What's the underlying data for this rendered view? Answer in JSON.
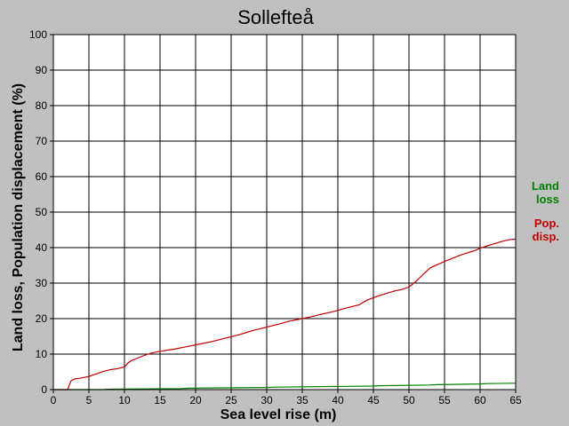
{
  "chart_data": {
    "type": "line",
    "title": "Sollefteå",
    "xlabel": "Sea level rise (m)",
    "ylabel": "Land loss, Population displacement (%)",
    "xlim": [
      0,
      65
    ],
    "ylim": [
      0,
      100
    ],
    "xticks": [
      0,
      5,
      10,
      15,
      20,
      25,
      30,
      35,
      40,
      45,
      50,
      55,
      60,
      65
    ],
    "yticks": [
      0,
      10,
      20,
      30,
      40,
      50,
      60,
      70,
      80,
      90,
      100
    ],
    "grid": true,
    "legend_position": "right",
    "series": [
      {
        "name": "Land loss",
        "legend_lines": [
          "Land",
          "loss"
        ],
        "color": "#008000",
        "x": [
          0,
          7,
          7.5,
          18,
          19,
          30,
          31,
          45,
          46,
          53,
          54,
          60,
          61,
          65
        ],
        "y": [
          0,
          0,
          0.1,
          0.3,
          0.4,
          0.6,
          0.7,
          1.0,
          1.1,
          1.3,
          1.4,
          1.6,
          1.7,
          1.8
        ]
      },
      {
        "name": "Pop. disp.",
        "legend_lines": [
          "Pop.",
          "disp."
        ],
        "color": "#c00000",
        "x": [
          0,
          2,
          2.5,
          3,
          4,
          5,
          6,
          7,
          8,
          9,
          10,
          10.5,
          11,
          12,
          13,
          14,
          15,
          16,
          17,
          18,
          19,
          20,
          21,
          22,
          23,
          24,
          25,
          26,
          27,
          28,
          29,
          30,
          31,
          32,
          33,
          34,
          35,
          36,
          37,
          38,
          39,
          40,
          41,
          42,
          43,
          44,
          45,
          46,
          47,
          48,
          49,
          50,
          51,
          52,
          53,
          54,
          55,
          56,
          57,
          58,
          59,
          60,
          61,
          62,
          63,
          64,
          65
        ],
        "y": [
          0,
          0,
          2.5,
          3,
          3.3,
          3.7,
          4.4,
          5.1,
          5.6,
          5.9,
          6.4,
          7.5,
          8.2,
          9.0,
          9.8,
          10.4,
          10.8,
          11.1,
          11.4,
          11.8,
          12.2,
          12.6,
          13.0,
          13.4,
          13.9,
          14.4,
          14.9,
          15.4,
          16.0,
          16.6,
          17.1,
          17.6,
          18.1,
          18.6,
          19.2,
          19.6,
          20.0,
          20.4,
          20.9,
          21.4,
          21.8,
          22.3,
          22.9,
          23.4,
          23.9,
          25.1,
          25.9,
          26.6,
          27.2,
          27.8,
          28.2,
          28.9,
          30.5,
          32.5,
          34.3,
          35.2,
          36.1,
          36.9,
          37.7,
          38.4,
          39.0,
          39.8,
          40.5,
          41.1,
          41.7,
          42.2,
          42.4
        ]
      }
    ]
  }
}
